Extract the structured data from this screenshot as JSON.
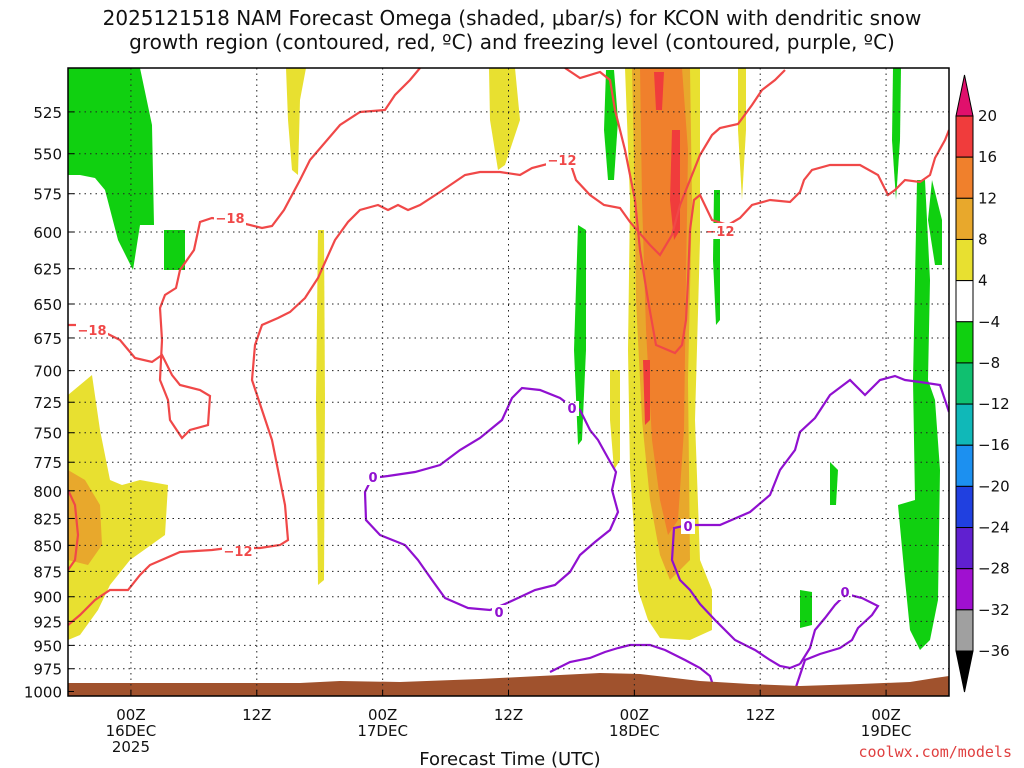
{
  "title": {
    "line1": "2025121518 NAM Forecast Omega (shaded, μbar/s) for KCON with dendritic snow",
    "line2": "growth region (contoured, red, ºC) and freezing level (contoured, purple, ºC)"
  },
  "chart_data": {
    "type": "heatmap",
    "xlabel": "Forecast Time (UTC)",
    "x_ticks": [
      {
        "hour": 6,
        "lines": [
          "00Z",
          "16DEC",
          "2025"
        ]
      },
      {
        "hour": 18,
        "lines": [
          "12Z"
        ]
      },
      {
        "hour": 30,
        "lines": [
          "00Z",
          "17DEC"
        ]
      },
      {
        "hour": 42,
        "lines": [
          "12Z"
        ]
      },
      {
        "hour": 54,
        "lines": [
          "00Z",
          "18DEC"
        ]
      },
      {
        "hour": 66,
        "lines": [
          "12Z"
        ]
      },
      {
        "hour": 78,
        "lines": [
          "00Z",
          "19DEC"
        ]
      }
    ],
    "xlim": [
      0,
      84
    ],
    "y_ticks": [
      525,
      550,
      575,
      600,
      625,
      650,
      675,
      700,
      725,
      750,
      775,
      800,
      825,
      850,
      875,
      900,
      925,
      950,
      975,
      1000
    ],
    "ylim": [
      500,
      1005
    ],
    "y_scale": "log-pressure (inverted)",
    "grid": "dotted",
    "colorbar": {
      "labels": [
        "20",
        "16",
        "12",
        "8",
        "4",
        "−4",
        "−8",
        "−12",
        "−16",
        "−20",
        "−24",
        "−28",
        "−32",
        "−36"
      ],
      "bins": [
        {
          "lo": 16,
          "hi": 20,
          "color": "#f03c3c"
        },
        {
          "lo": 12,
          "hi": 16,
          "color": "#f0802c"
        },
        {
          "lo": 8,
          "hi": 12,
          "color": "#e8a82c"
        },
        {
          "lo": 4,
          "hi": 8,
          "color": "#e8e030"
        },
        {
          "lo": -4,
          "hi": 4,
          "color": "#ffffff"
        },
        {
          "lo": -8,
          "hi": -4,
          "color": "#10d010"
        },
        {
          "lo": -12,
          "hi": -8,
          "color": "#10c070"
        },
        {
          "lo": -16,
          "hi": -12,
          "color": "#10b8b8"
        },
        {
          "lo": -20,
          "hi": -16,
          "color": "#1c90f0"
        },
        {
          "lo": -24,
          "hi": -20,
          "color": "#2040e0"
        },
        {
          "lo": -28,
          "hi": -24,
          "color": "#6020d0"
        },
        {
          "lo": -32,
          "hi": -28,
          "color": "#a010d0"
        },
        {
          "lo": -36,
          "hi": -32,
          "color": "#a0a0a0"
        }
      ],
      "top_arrow_color": "#e0106c",
      "bottom_arrow_color": "#000000"
    },
    "contour_labels": {
      "dgz": [
        "−18",
        "−12",
        "−12",
        "−18",
        "−12"
      ],
      "freezing": [
        "0",
        "0",
        "0",
        "0",
        "0"
      ]
    },
    "colors": {
      "dgz": "#f04848",
      "freezing": "#9010d0",
      "ground": "#a0522d"
    }
  },
  "credit": "coolwx.com/models"
}
